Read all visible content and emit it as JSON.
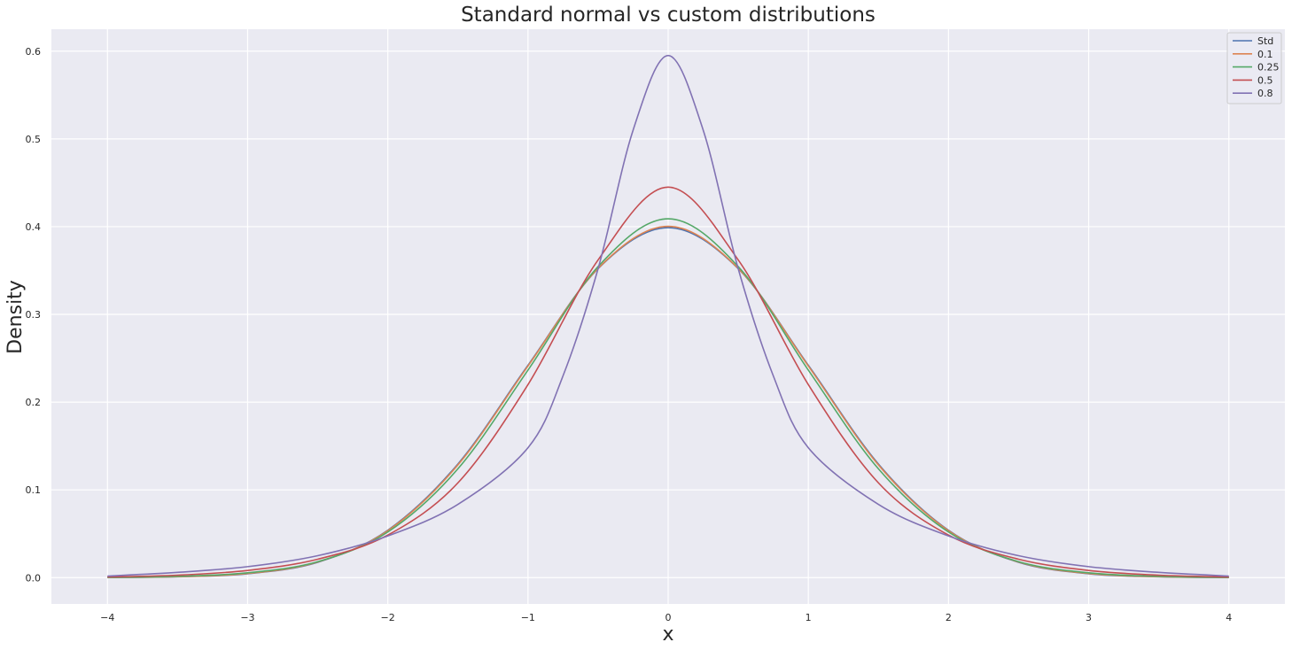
{
  "chart_data": {
    "type": "line",
    "title": "Standard normal vs custom distributions",
    "xlabel": "x",
    "ylabel": "Density",
    "xlim": [
      -4.4,
      4.4
    ],
    "ylim": [
      -0.03,
      0.625
    ],
    "xticks": [
      -4,
      -3,
      -2,
      -1,
      0,
      1,
      2,
      3,
      4
    ],
    "xtick_labels": [
      "−4",
      "−3",
      "−2",
      "−1",
      "0",
      "1",
      "2",
      "3",
      "4"
    ],
    "yticks": [
      0.0,
      0.1,
      0.2,
      0.3,
      0.4,
      0.5,
      0.6
    ],
    "ytick_labels": [
      "0.0",
      "0.1",
      "0.2",
      "0.3",
      "0.4",
      "0.5",
      "0.6"
    ],
    "grid": true,
    "legend_position": "top-right",
    "background_color": "#eaeaf2",
    "series": [
      {
        "name": "Std",
        "color": "#4c72b0",
        "x": [
          -4,
          -3.5,
          -3,
          -2.5,
          -2,
          -1.5,
          -1,
          -0.5,
          0,
          0.5,
          1,
          1.5,
          2,
          2.5,
          3,
          3.5,
          4
        ],
        "y": [
          0.0001,
          0.0009,
          0.0044,
          0.0175,
          0.054,
          0.1295,
          0.242,
          0.3521,
          0.3989,
          0.3521,
          0.242,
          0.1295,
          0.054,
          0.0175,
          0.0044,
          0.0009,
          0.0001
        ]
      },
      {
        "name": "0.1",
        "color": "#dd8452",
        "x": [
          -4,
          -3.5,
          -3,
          -2.5,
          -2,
          -1.5,
          -1,
          -0.5,
          0,
          0.5,
          1,
          1.5,
          2,
          2.5,
          3,
          3.5,
          4
        ],
        "y": [
          0.0002,
          0.0011,
          0.0047,
          0.0178,
          0.0535,
          0.1285,
          0.2412,
          0.3524,
          0.4004,
          0.3524,
          0.2412,
          0.1285,
          0.0535,
          0.0178,
          0.0047,
          0.0011,
          0.0002
        ]
      },
      {
        "name": "0.25",
        "color": "#55a868",
        "x": [
          -4,
          -3.5,
          -3,
          -2.5,
          -2,
          -1.5,
          -1,
          -0.5,
          0,
          0.5,
          1,
          1.5,
          2,
          2.5,
          3,
          3.5,
          4
        ],
        "y": [
          0.0003,
          0.0015,
          0.0055,
          0.0182,
          0.052,
          0.124,
          0.2365,
          0.3545,
          0.409,
          0.3545,
          0.2365,
          0.124,
          0.052,
          0.0182,
          0.0055,
          0.0015,
          0.0003
        ]
      },
      {
        "name": "0.5",
        "color": "#c44e52",
        "x": [
          -4,
          -3.5,
          -3,
          -2.5,
          -2,
          -1.5,
          -1,
          -0.5,
          0,
          0.5,
          1,
          1.5,
          2,
          2.5,
          3,
          3.5,
          4
        ],
        "y": [
          0.0008,
          0.0028,
          0.0082,
          0.021,
          0.0485,
          0.108,
          0.22,
          0.362,
          0.445,
          0.362,
          0.22,
          0.108,
          0.0485,
          0.021,
          0.0082,
          0.0028,
          0.0008
        ]
      },
      {
        "name": "0.8",
        "color": "#8172b3",
        "x": [
          -4,
          -3.5,
          -3,
          -2.5,
          -2,
          -1.5,
          -1,
          -0.75,
          -0.5,
          -0.25,
          0,
          0.25,
          0.5,
          0.75,
          1,
          1.5,
          2,
          2.5,
          3,
          3.5,
          4
        ],
        "y": [
          0.0018,
          0.006,
          0.0125,
          0.025,
          0.0475,
          0.0835,
          0.148,
          0.23,
          0.352,
          0.51,
          0.595,
          0.51,
          0.352,
          0.23,
          0.148,
          0.0835,
          0.0475,
          0.025,
          0.0125,
          0.006,
          0.0018
        ]
      }
    ]
  }
}
